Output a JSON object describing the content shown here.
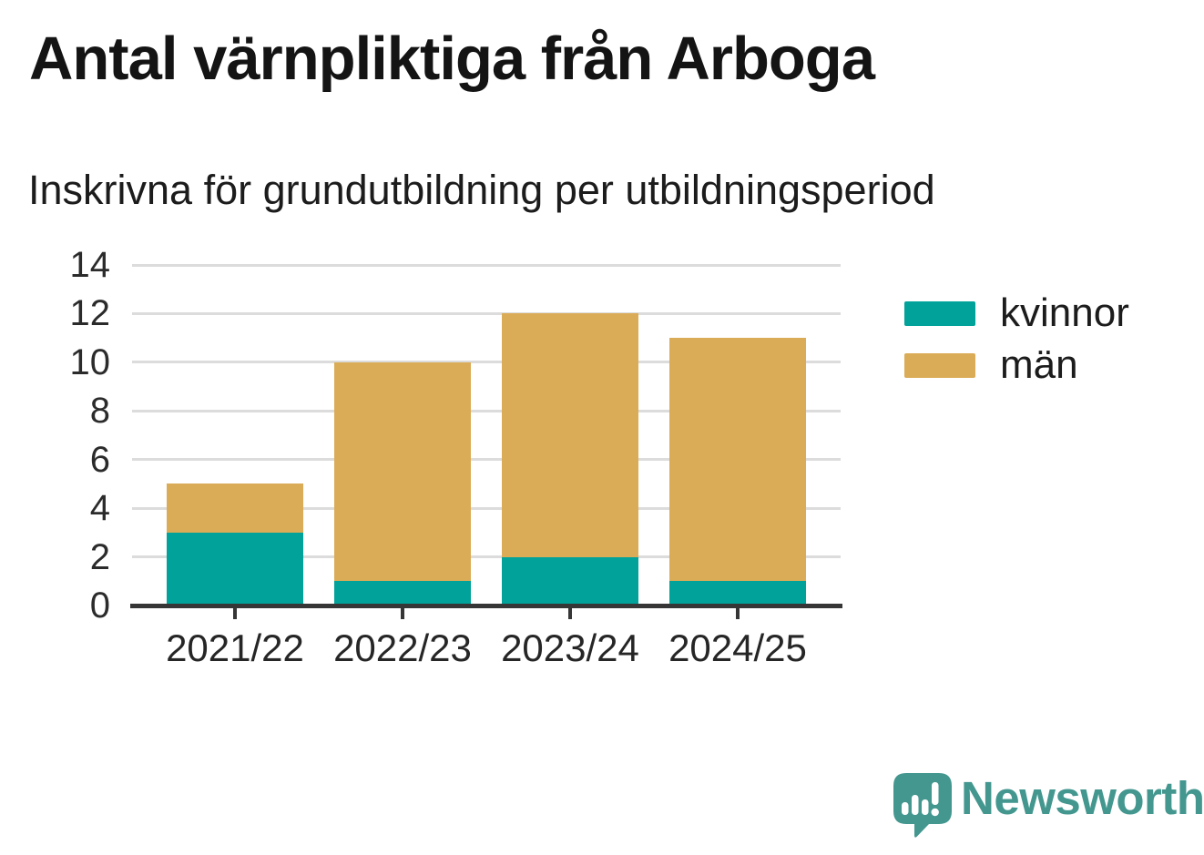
{
  "header": {
    "title": "Antal värnpliktiga från Arboga",
    "subtitle": "Inskrivna för grundutbildning per utbildningsperiod"
  },
  "chart_data": {
    "type": "bar",
    "stacked": true,
    "title": "Antal värnpliktiga från Arboga",
    "subtitle": "Inskrivna för grundutbildning per utbildningsperiod",
    "categories": [
      "2021/22",
      "2022/23",
      "2023/24",
      "2024/25"
    ],
    "series": [
      {
        "name": "kvinnor",
        "color": "#00A29A",
        "values": [
          3,
          1,
          2,
          1
        ]
      },
      {
        "name": "män",
        "color": "#DBAC57",
        "values": [
          2,
          9,
          10,
          10
        ]
      }
    ],
    "totals": [
      5,
      10,
      12,
      11
    ],
    "xlabel": "",
    "ylabel": "",
    "ylim": [
      0,
      14
    ],
    "yticks": [
      0,
      2,
      4,
      6,
      8,
      10,
      12,
      14
    ],
    "grid": "horizontal",
    "legend_position": "right"
  },
  "footer": {
    "brand": "Newsworthy",
    "brand_color": "#43978F"
  },
  "style": {
    "axis_color": "#363636",
    "grid_color": "#DCDCDC",
    "background": "#FFFFFF"
  }
}
